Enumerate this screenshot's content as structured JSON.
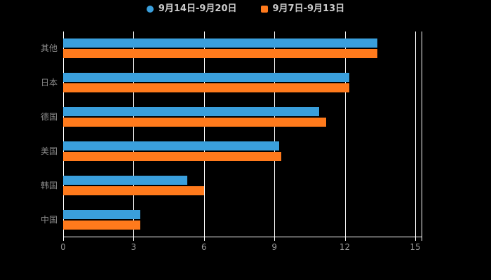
{
  "chart_data": {
    "type": "bar",
    "orientation": "horizontal",
    "title": "",
    "xlabel": "",
    "ylabel": "",
    "categories": [
      "其他",
      "日本",
      "德国",
      "美国",
      "韩国",
      "中国"
    ],
    "series": [
      {
        "name": "9月14日-9月20日",
        "color": "#3A9FDC",
        "values": [
          13.4,
          12.2,
          10.9,
          9.2,
          5.3,
          3.3
        ]
      },
      {
        "name": "9月7日-9月13日",
        "color": "#FF7A1C",
        "values": [
          13.4,
          12.2,
          11.2,
          9.3,
          6.0,
          3.3
        ]
      }
    ],
    "xlim": [
      0,
      15
    ],
    "x_ticks": [
      0,
      3,
      6,
      9,
      12,
      15
    ],
    "plot_max": 15.27,
    "legend_position": "top",
    "grid": true
  },
  "colors": {
    "background": "#000000",
    "grid_line": "#ffffff",
    "axis_line": "#ffffff",
    "tick_label": "#999999",
    "category_label": "#8c8c8c",
    "legend_label": "#cccccc"
  }
}
